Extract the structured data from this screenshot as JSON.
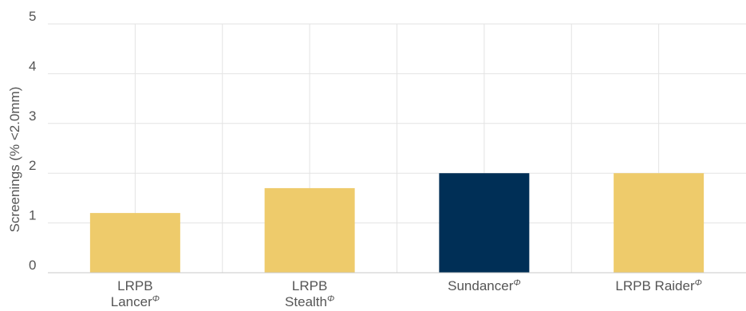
{
  "chart_data": {
    "type": "bar",
    "title": "",
    "xlabel": "",
    "ylabel": "Screenings (% <2.0mm)",
    "ylim": [
      0,
      5
    ],
    "yticks": [
      "0",
      "1",
      "2",
      "3",
      "4",
      "5"
    ],
    "grid": true,
    "categories": [
      {
        "lines": [
          "LRPB",
          "Lancer"
        ],
        "suffix": "Φ"
      },
      {
        "lines": [
          "LRPB",
          "Stealth"
        ],
        "suffix": "Φ"
      },
      {
        "lines": [
          "Sundancer"
        ],
        "suffix": "Φ"
      },
      {
        "lines": [
          "LRPB Raider"
        ],
        "suffix": "Φ"
      }
    ],
    "values": [
      1.2,
      1.7,
      2.0,
      2.0
    ],
    "colors": [
      "#eecb6b",
      "#eecb6b",
      "#002f56",
      "#eecb6b"
    ]
  }
}
